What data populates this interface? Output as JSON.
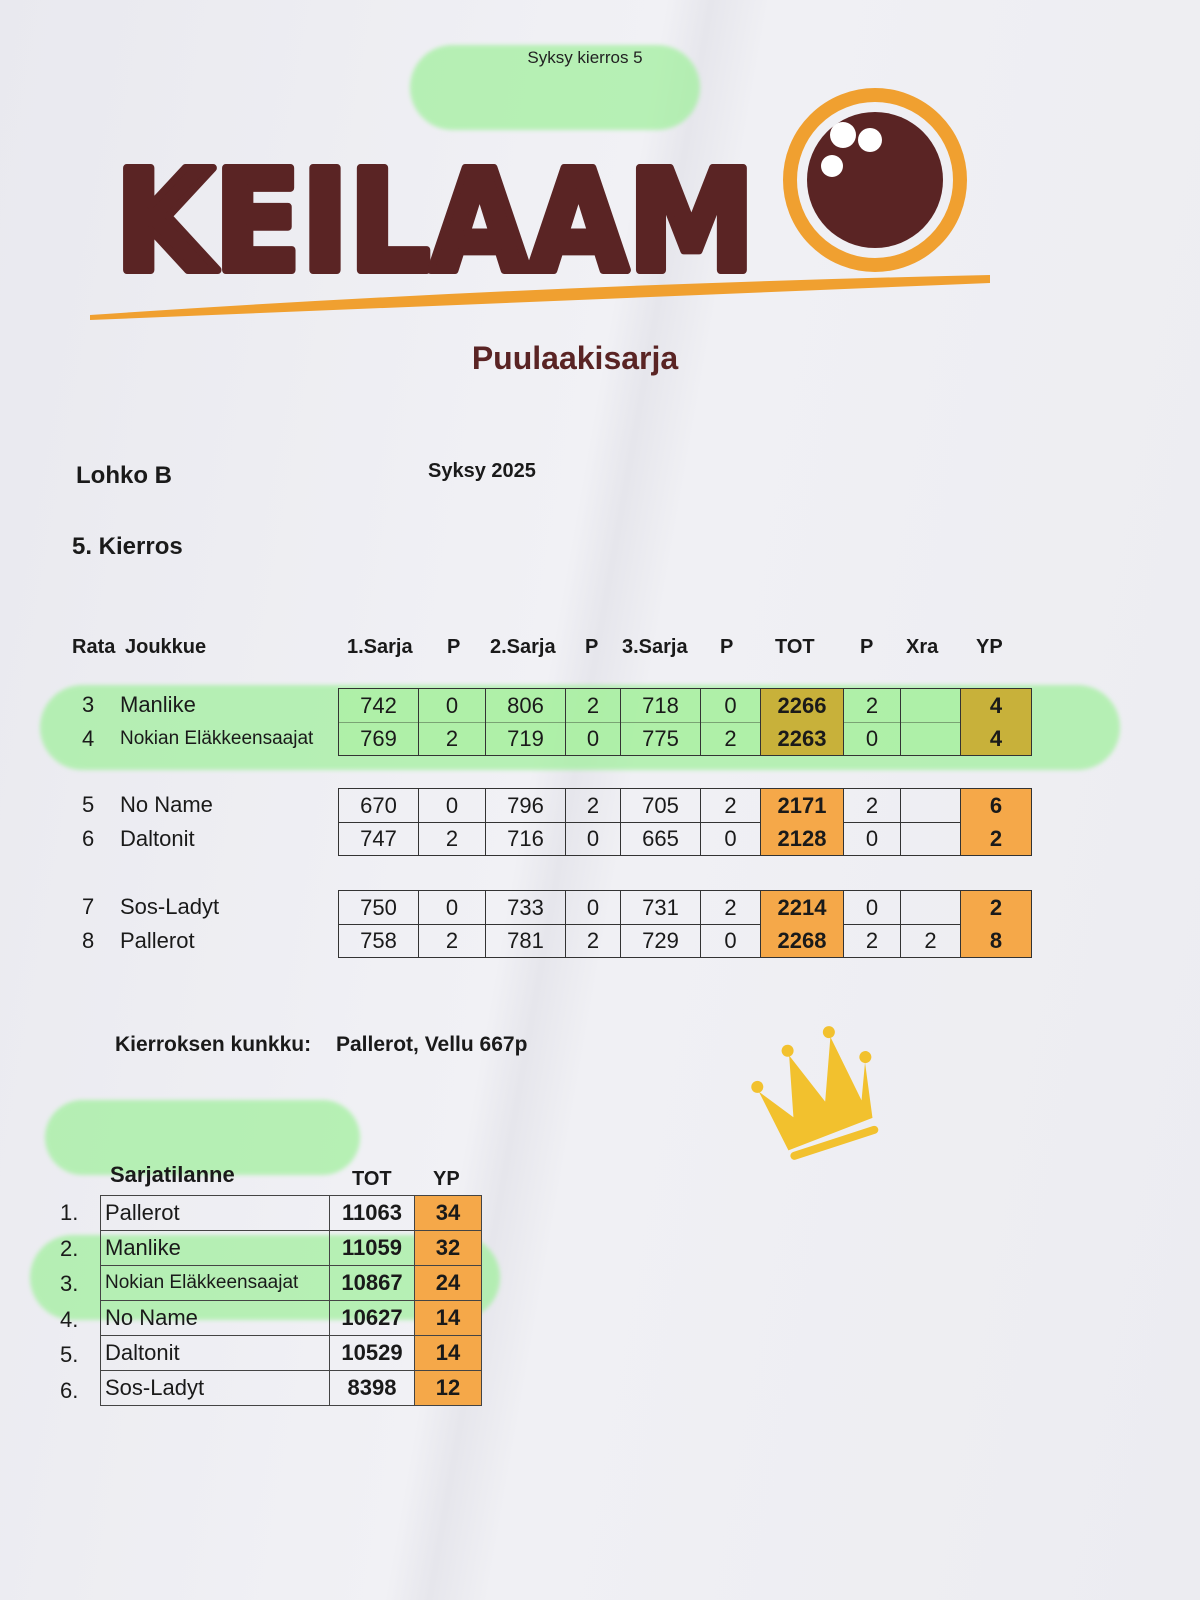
{
  "header": {
    "subtitle": "Syksy kierros 5",
    "logo_text": "KEILAAM",
    "league": "Puulaakisarja"
  },
  "info": {
    "division": "Lohko B",
    "season": "Syksy 2025",
    "round": "5. Kierros"
  },
  "columns": {
    "rata": "Rata",
    "team": "Joukkue",
    "s1": "1.Sarja",
    "p1": "P",
    "s2": "2.Sarja",
    "p2": "P",
    "s3": "3.Sarja",
    "p3": "P",
    "tot": "TOT",
    "pt": "P",
    "xra": "Xra",
    "yp": "YP"
  },
  "matches": [
    {
      "highlighted": true,
      "rows": [
        {
          "rata": "3",
          "team": "Manlike",
          "s1": "742",
          "p1": "0",
          "s2": "806",
          "p2": "2",
          "s3": "718",
          "p3": "0",
          "tot": "2266",
          "pt": "2",
          "xra": "",
          "yp": "4"
        },
        {
          "rata": "4",
          "team": "Nokian Eläkkeensaajat",
          "s1": "769",
          "p1": "2",
          "s2": "719",
          "p2": "0",
          "s3": "775",
          "p3": "2",
          "tot": "2263",
          "pt": "0",
          "xra": "",
          "yp": "4"
        }
      ]
    },
    {
      "highlighted": false,
      "rows": [
        {
          "rata": "5",
          "team": "No Name",
          "s1": "670",
          "p1": "0",
          "s2": "796",
          "p2": "2",
          "s3": "705",
          "p3": "2",
          "tot": "2171",
          "pt": "2",
          "xra": "",
          "yp": "6"
        },
        {
          "rata": "6",
          "team": "Daltonit",
          "s1": "747",
          "p1": "2",
          "s2": "716",
          "p2": "0",
          "s3": "665",
          "p3": "0",
          "tot": "2128",
          "pt": "0",
          "xra": "",
          "yp": "2"
        }
      ]
    },
    {
      "highlighted": false,
      "rows": [
        {
          "rata": "7",
          "team": "Sos-Ladyt",
          "s1": "750",
          "p1": "0",
          "s2": "733",
          "p2": "0",
          "s3": "731",
          "p3": "2",
          "tot": "2214",
          "pt": "0",
          "xra": "",
          "yp": "2"
        },
        {
          "rata": "8",
          "team": "Pallerot",
          "s1": "758",
          "p1": "2",
          "s2": "781",
          "p2": "2",
          "s3": "729",
          "p3": "0",
          "tot": "2268",
          "pt": "2",
          "xra": "2",
          "yp": "8"
        }
      ]
    }
  ],
  "king": {
    "label": "Kierroksen kunkku:",
    "value": "Pallerot, Vellu 667p",
    "icon": "crown-icon"
  },
  "standings": {
    "title": "Sarjatilanne",
    "tot_label": "TOT",
    "yp_label": "YP",
    "rows": [
      {
        "rank": "1.",
        "team": "Pallerot",
        "tot": "11063",
        "yp": "34"
      },
      {
        "rank": "2.",
        "team": "Manlike",
        "tot": "11059",
        "yp": "32"
      },
      {
        "rank": "3.",
        "team": "Nokian Eläkkeensaajat",
        "tot": "10867",
        "yp": "24"
      },
      {
        "rank": "4.",
        "team": "No Name",
        "tot": "10627",
        "yp": "14"
      },
      {
        "rank": "5.",
        "team": "Daltonit",
        "tot": "10529",
        "yp": "14"
      },
      {
        "rank": "6.",
        "team": "Sos-Ladyt",
        "tot": "8398",
        "yp": "12"
      }
    ]
  },
  "colors": {
    "brand_dark": "#5a2424",
    "brand_orange": "#f0a030",
    "cell_orange": "#f5a849",
    "highlighter_green": "#9ef09a",
    "crown": "#f2c12e"
  }
}
